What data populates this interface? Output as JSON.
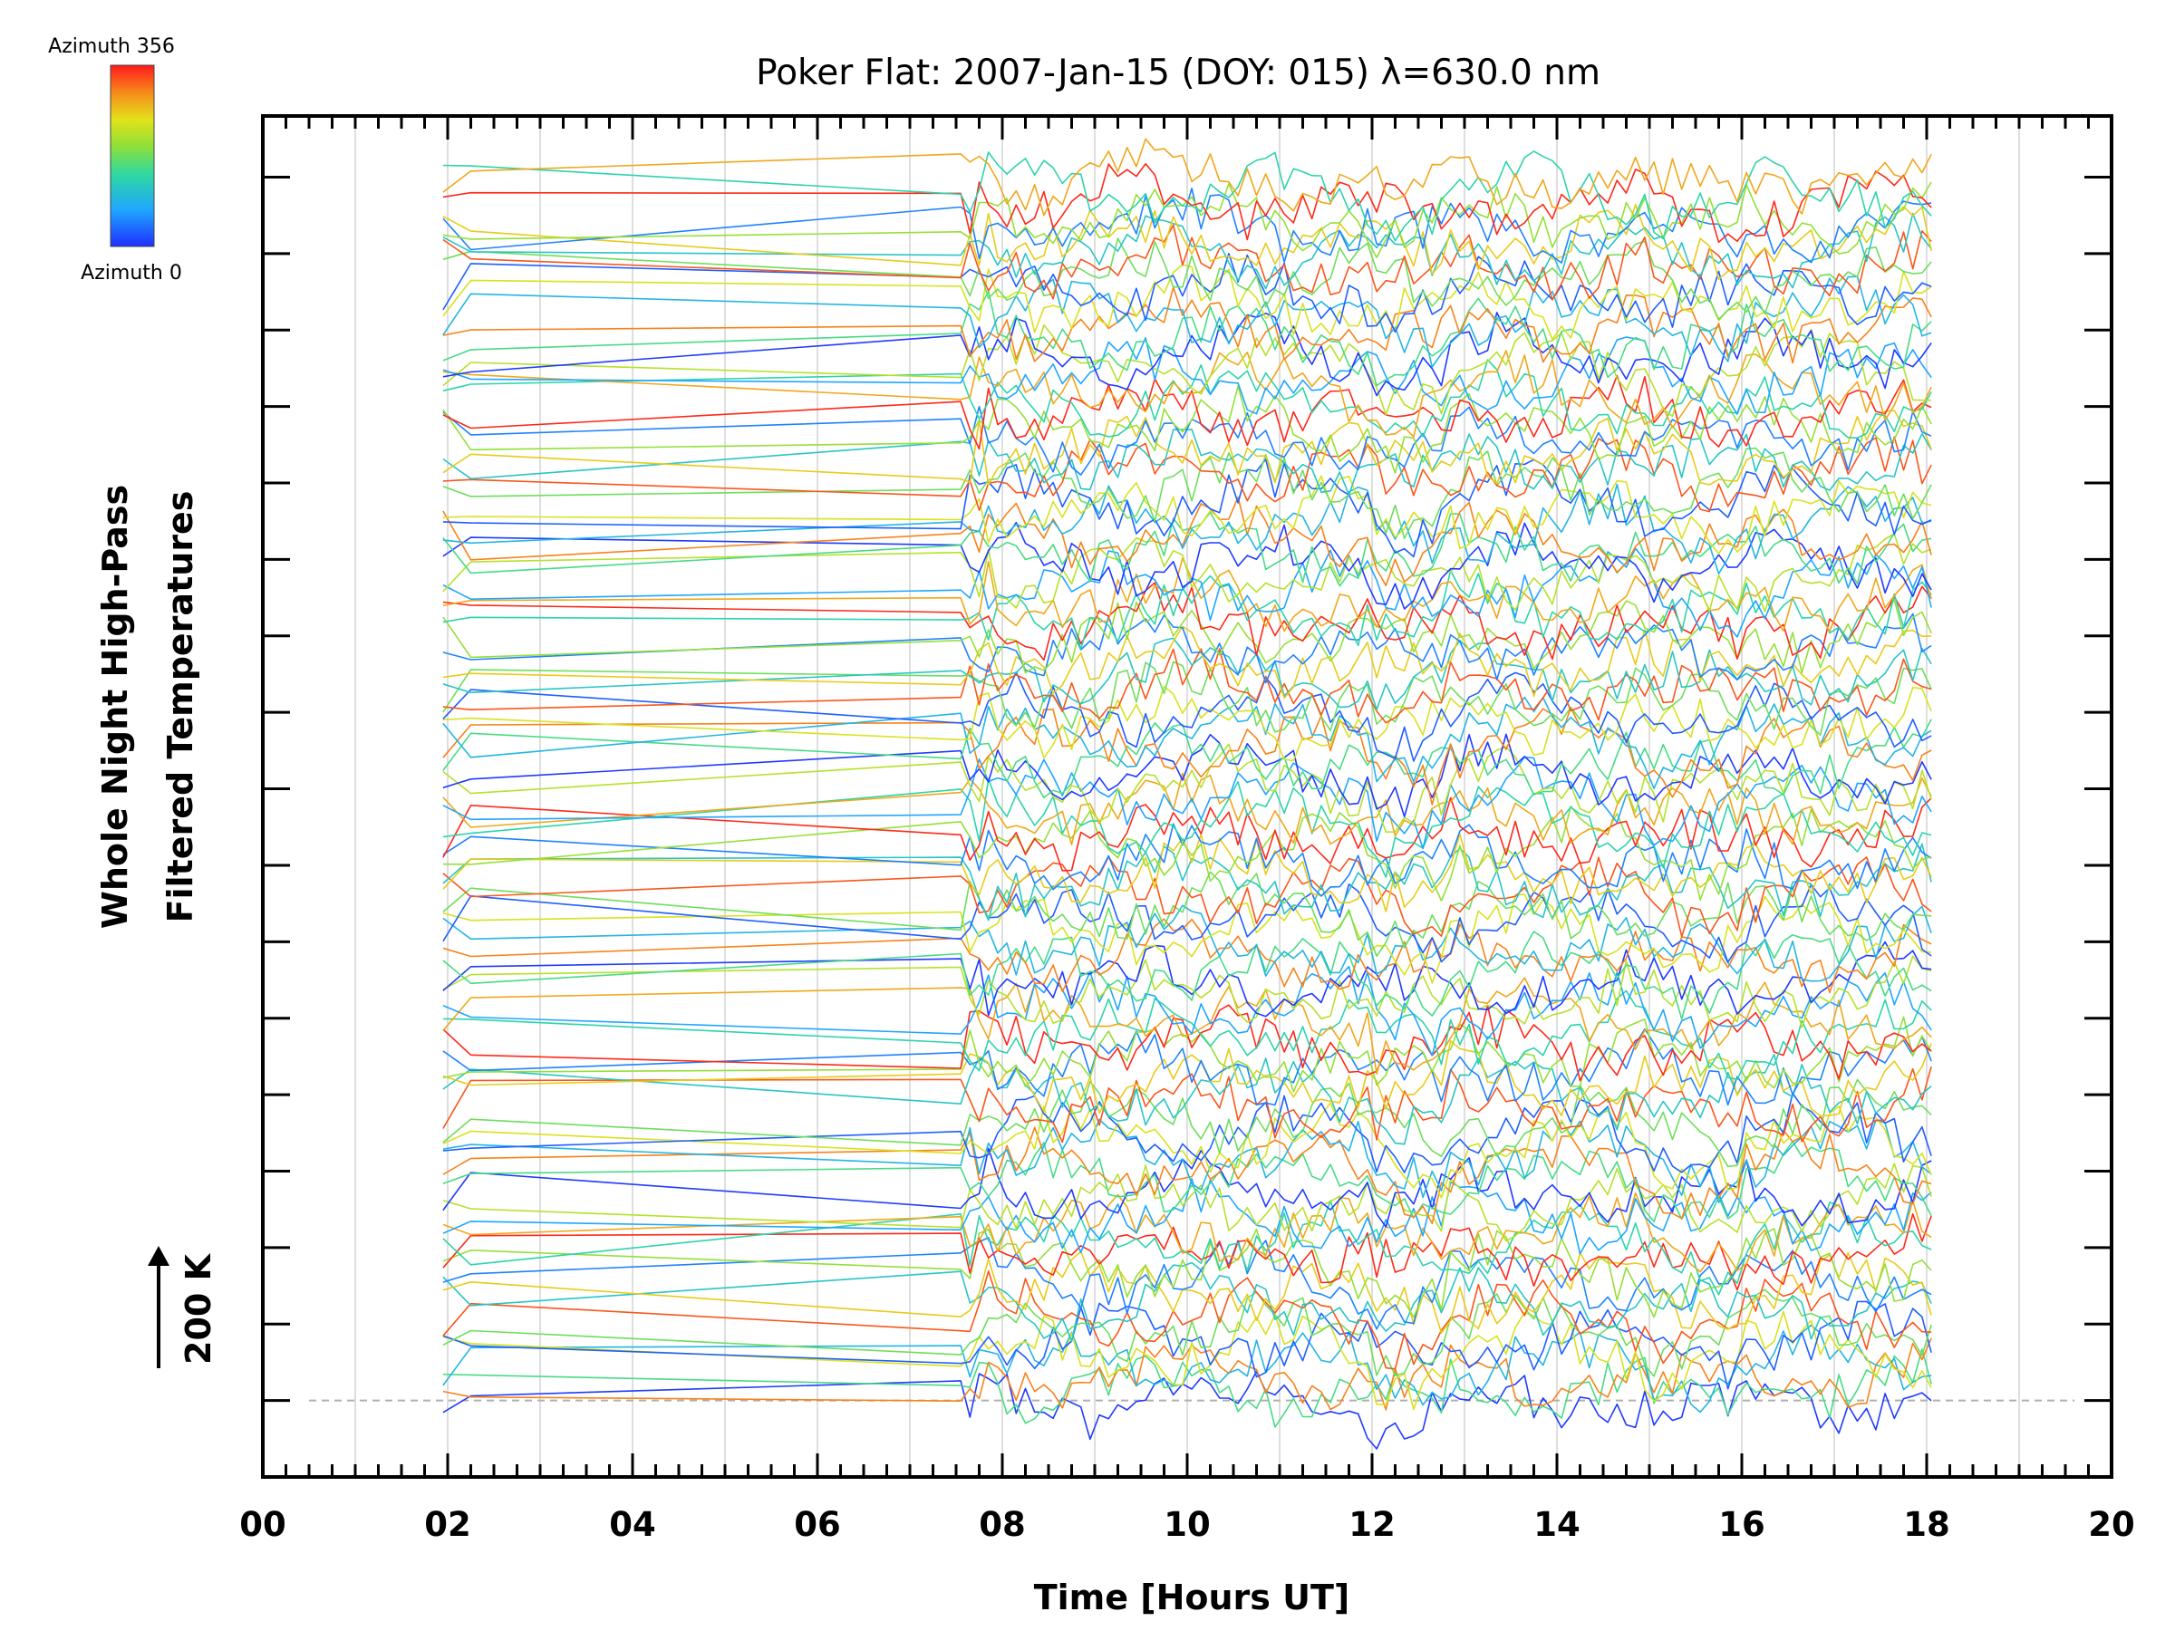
{
  "chart_data": {
    "type": "line",
    "title": "Poker Flat: 2007-Jan-15 (DOY: 015) λ=630.0 nm",
    "xlabel": "Time [Hours UT]",
    "ylabel_line1": "Whole Night High-Pass",
    "ylabel_line2": "Filtered Temperatures",
    "scale_label": "200 K",
    "xlim": [
      0,
      20
    ],
    "x_ticks": [
      "00",
      "02",
      "04",
      "06",
      "08",
      "10",
      "12",
      "14",
      "16",
      "18",
      "20"
    ],
    "ylim_offset_units": [
      -1,
      16.8
    ],
    "y_scale_per_offset_unit_K": 200,
    "grid": "vertical every 1 hour (light grey)",
    "colorbar": {
      "top_label": "Azimuth 356",
      "bottom_label": "Azimuth 0",
      "colormap": "rainbow (blue at 0 to red at 356)",
      "position": "top-left"
    },
    "baseline_offset": 0,
    "series_layout": {
      "n_traces": 100,
      "offset_range": [
        0,
        16
      ],
      "sampling": "sparse 01:55–07:45, then about every 6 minutes from 07:30 to 18:10",
      "description": "vertically stacked high-pass filtered temperature traces, each coloured by azimuth"
    }
  }
}
